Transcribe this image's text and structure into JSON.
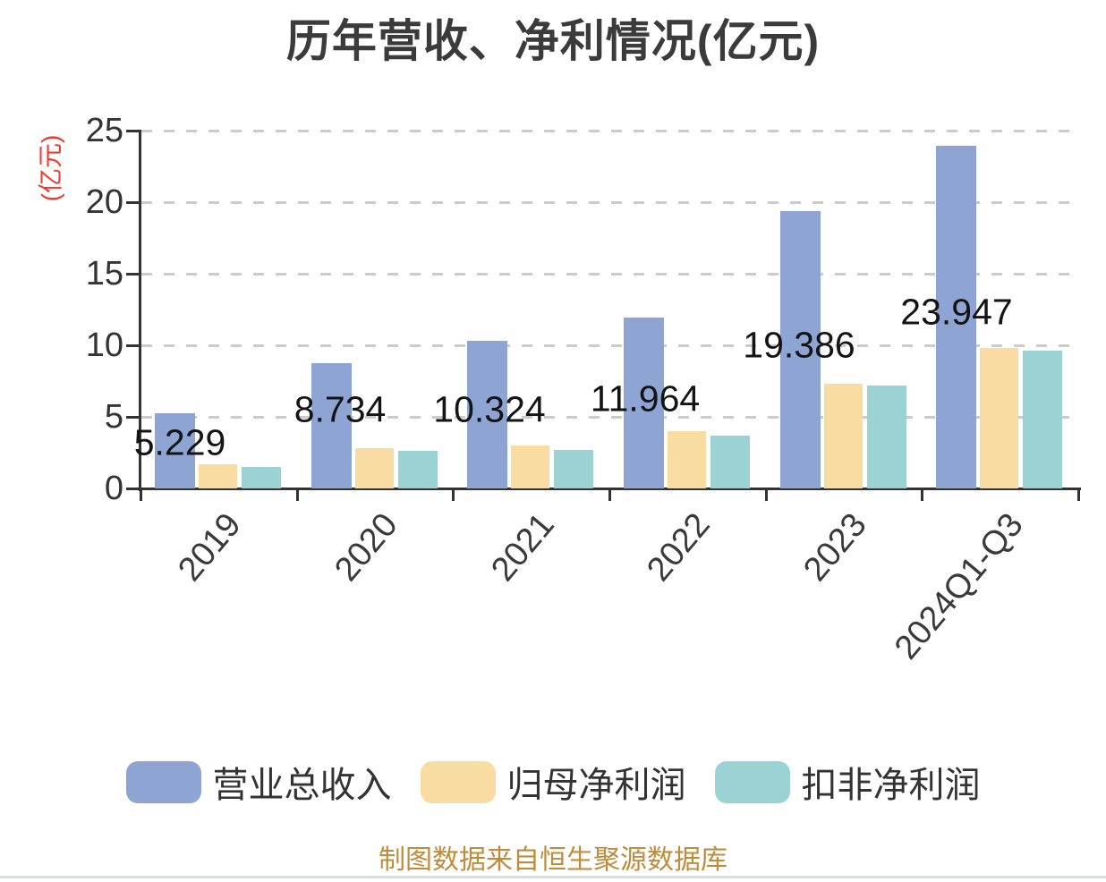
{
  "chart_data": {
    "type": "bar",
    "title": "历年营收、净利情况(亿元)",
    "categories": [
      "2019",
      "2020",
      "2021",
      "2022",
      "2023",
      "2024Q1-Q3"
    ],
    "series": [
      {
        "name": "营业总收入",
        "color": "#8EA5D3",
        "values": [
          5.229,
          8.734,
          10.324,
          11.964,
          19.386,
          23.947
        ]
      },
      {
        "name": "归母净利润",
        "color": "#F8DCA2",
        "values": [
          1.7,
          2.8,
          3.0,
          4.0,
          7.3,
          9.8
        ]
      },
      {
        "name": "扣非净利润",
        "color": "#9BD3D4",
        "values": [
          1.5,
          2.6,
          2.7,
          3.7,
          7.2,
          9.6
        ]
      }
    ],
    "bar_labels": [
      "5.229",
      "8.734",
      "10.324",
      "11.964",
      "19.386",
      "23.947"
    ],
    "y_axis": {
      "name": "(亿元)",
      "name_color": "#f03b2e",
      "ticks": [
        0,
        5,
        10,
        15,
        20,
        25
      ],
      "min": 0,
      "max": 25
    },
    "x_axis": {
      "label_rotation_deg": -50
    },
    "grid": "horizontal dashed gridlines",
    "legend_position": "bottom",
    "axis_color": "#333333",
    "gridline_color": "#cbcbcb",
    "label_color": "#141414"
  },
  "footer": {
    "text": "制图数据来自恒生聚源数据库",
    "color": "#BE8C3B"
  }
}
